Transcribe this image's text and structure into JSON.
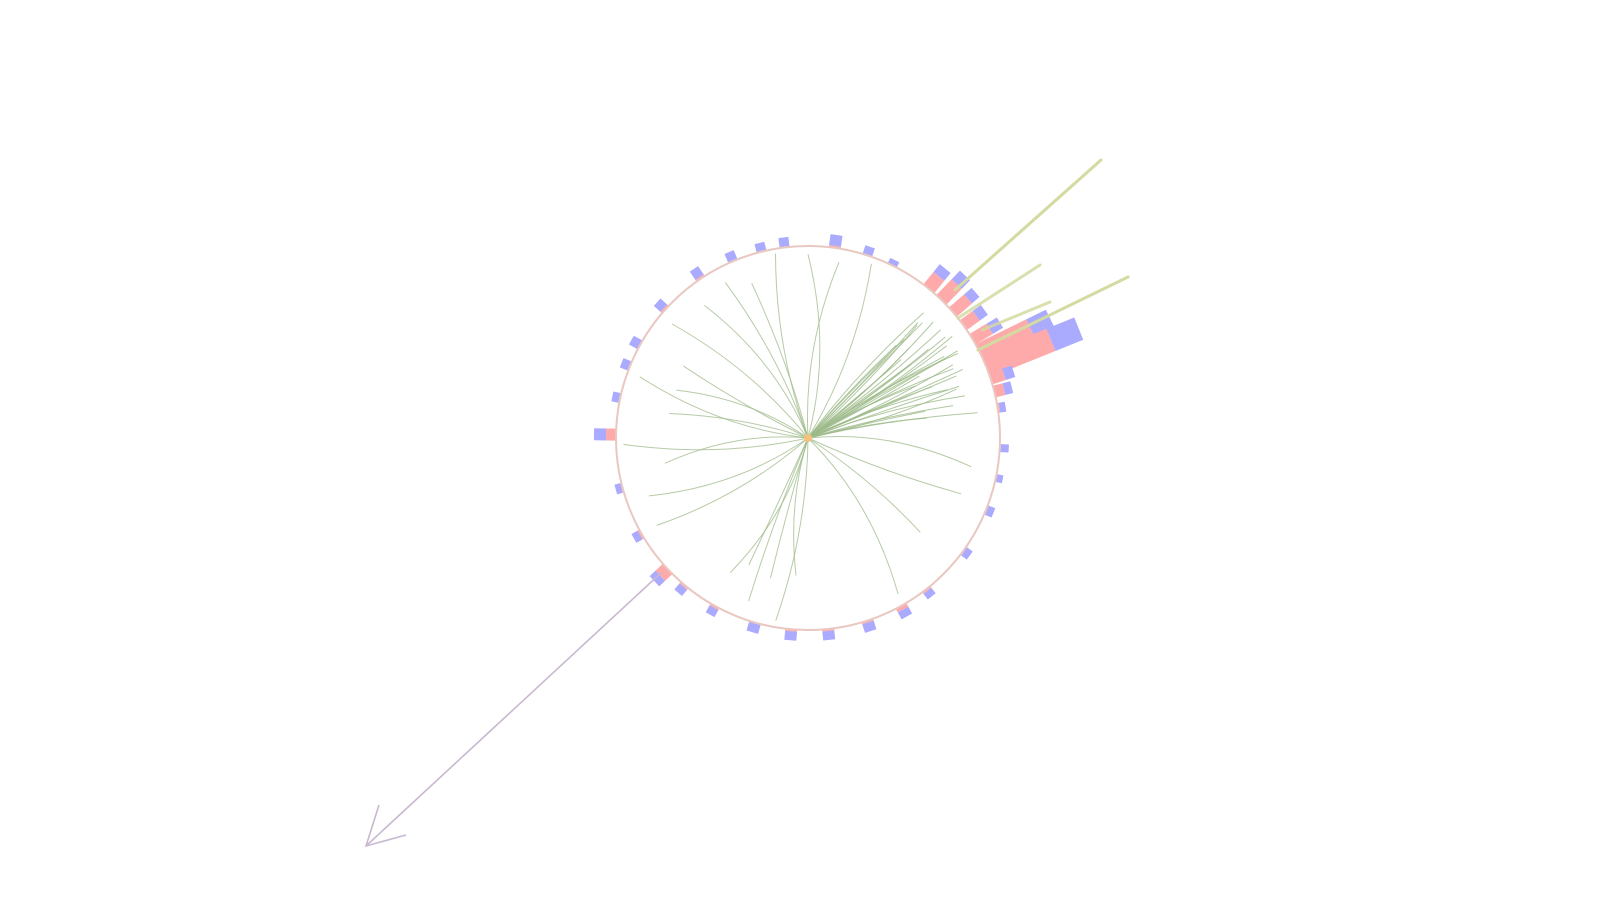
{
  "scene": {
    "background": "#ffffff",
    "colors": {
      "detector_ring": "#e8c8c0",
      "em_deposit": "#ffaaaa",
      "hadronic_deposit": "#aaaaff",
      "track": "#9dba8a",
      "jet_axis": "#d4daa0",
      "missing_energy_arrow": "#c8b8d0",
      "vertex": "#f5c27a"
    },
    "icons": [
      "vertex-dot",
      "arrow-head"
    ]
  }
}
